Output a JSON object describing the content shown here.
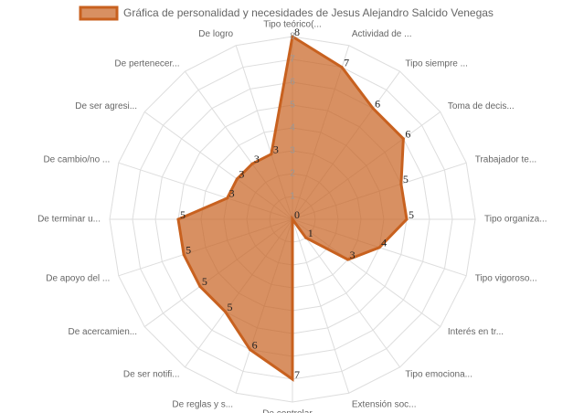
{
  "chart_data": {
    "type": "radar",
    "categories": [
      "Tipo teórico(...",
      "Actividad de ...",
      "Tipo siempre ...",
      "Toma de decis...",
      "Trabajador te...",
      "Tipo organiza...",
      "Tipo vigoroso...",
      "Interés en tr...",
      "Tipo emociona...",
      "Extensión soc...",
      "De controlar ...",
      "De reglas y s...",
      "De ser notifi...",
      "De acercamien...",
      "De apoyo del ...",
      "De terminar u...",
      "De cambio/no ...",
      "De ser agresi...",
      "De pertenecer...",
      "De logro"
    ],
    "series": [
      {
        "name": "Gráfica de personalidad y necesidades de Jesus Alejandro Salcido Venegas",
        "color": "#c8611f",
        "values": [
          8,
          7,
          6,
          6,
          5,
          5,
          4,
          3,
          1,
          0,
          7,
          6,
          5,
          5,
          5,
          5,
          3,
          3,
          3,
          3
        ]
      }
    ],
    "ylim": [
      0,
      8
    ],
    "yticks": [
      1,
      2,
      3,
      4,
      5,
      6,
      7,
      8
    ],
    "grid": true,
    "legend": "top"
  }
}
